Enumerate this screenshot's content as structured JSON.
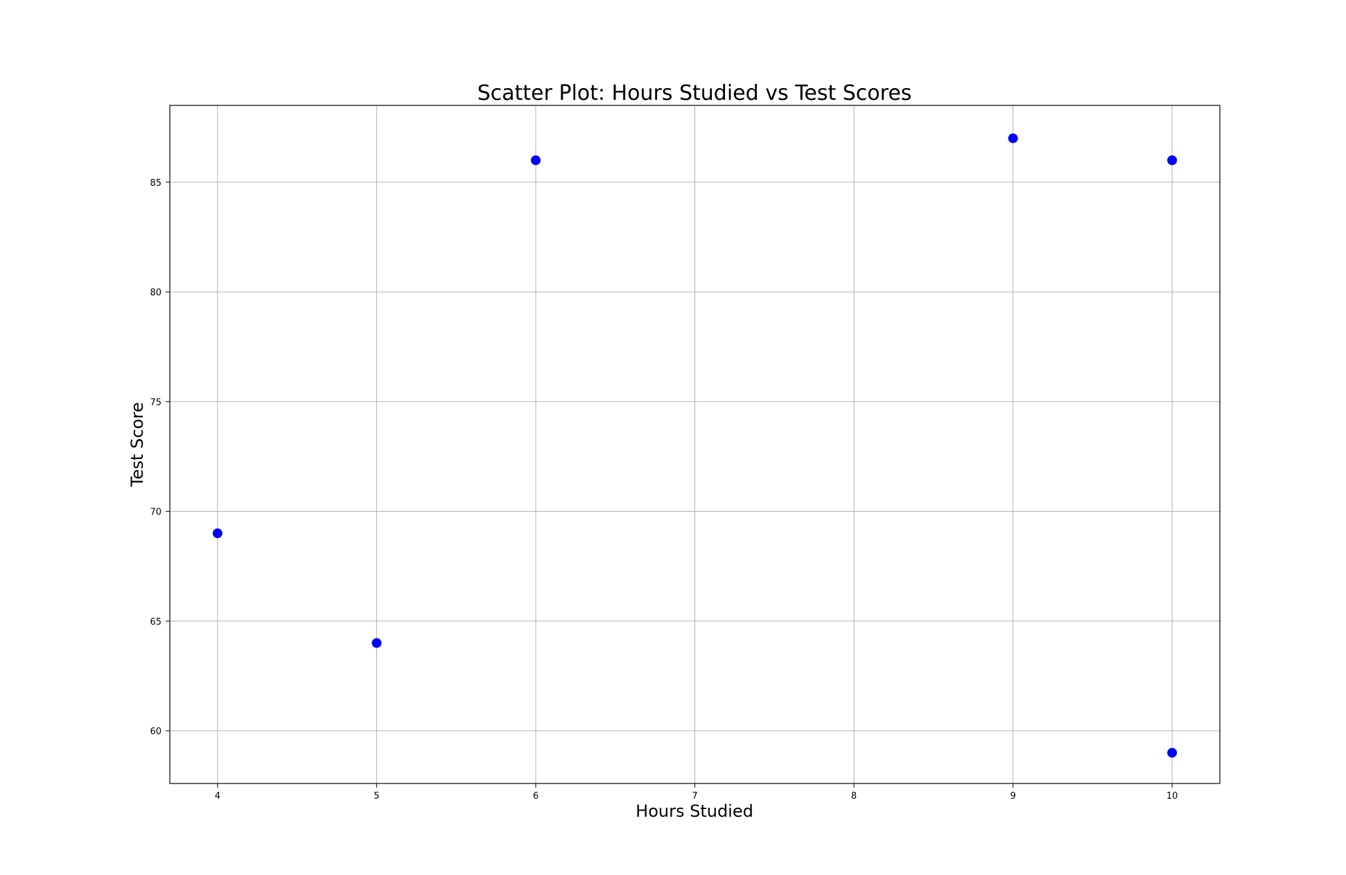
{
  "chart_data": {
    "type": "scatter",
    "title": "Scatter Plot: Hours Studied vs Test Scores",
    "xlabel": "Hours Studied",
    "ylabel": "Test Score",
    "xlim": [
      3.7,
      10.3
    ],
    "ylim": [
      57.6,
      88.5
    ],
    "xticks": [
      4,
      5,
      6,
      7,
      8,
      9,
      10
    ],
    "yticks": [
      60,
      65,
      70,
      75,
      80,
      85
    ],
    "grid": true,
    "color": "#0000ff",
    "points": [
      {
        "x": 4,
        "y": 69
      },
      {
        "x": 5,
        "y": 64
      },
      {
        "x": 6,
        "y": 86
      },
      {
        "x": 9,
        "y": 87
      },
      {
        "x": 10,
        "y": 86
      },
      {
        "x": 10,
        "y": 59
      }
    ]
  }
}
